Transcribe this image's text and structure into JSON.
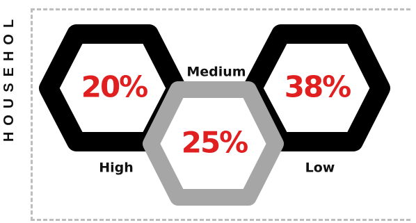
{
  "side_label": "HOUSEHOL",
  "items": [
    {
      "label": "High",
      "value": "20%",
      "ring_color": "#000000"
    },
    {
      "label": "Medium",
      "value": "25%",
      "ring_color": "#a6a6a6"
    },
    {
      "label": "Low",
      "value": "38%",
      "ring_color": "#000000"
    }
  ],
  "value_color": "#e02020",
  "label_color": "#111111"
}
